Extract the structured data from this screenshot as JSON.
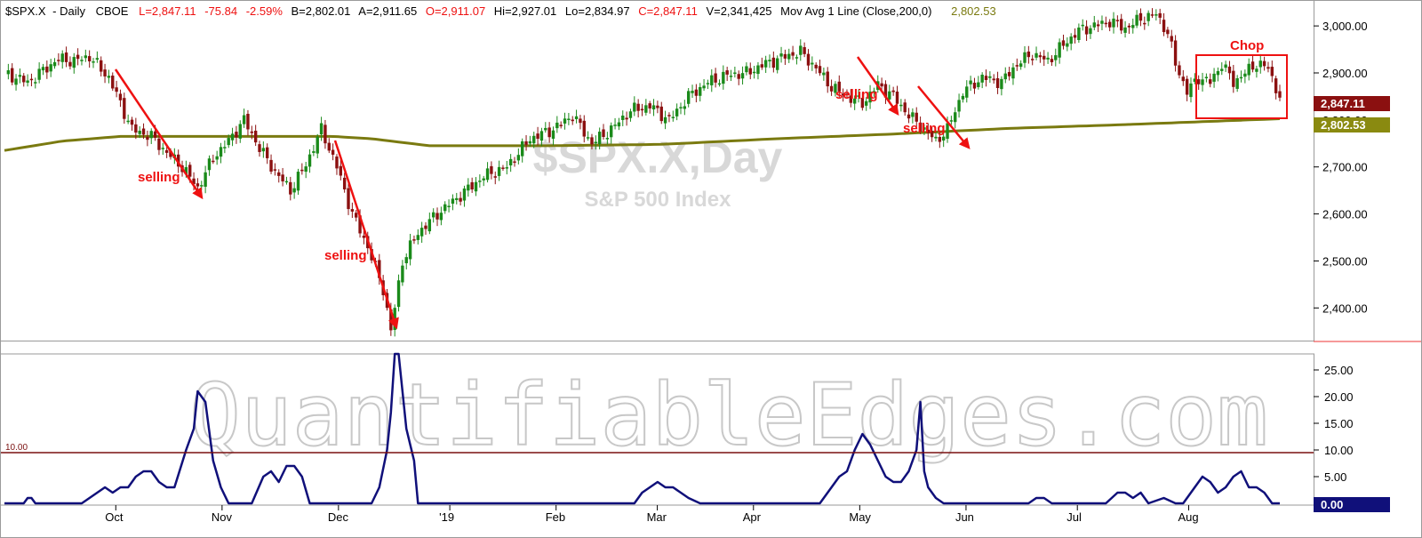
{
  "header": {
    "symbol": "$SPX.X",
    "period": "- Daily",
    "exchange": "CBOE",
    "last": "L=2,847.11",
    "change": "-75.84",
    "change_pct": "-2.59%",
    "bid": "B=2,802.01",
    "ask": "A=2,911.65",
    "open": "O=2,911.07",
    "high": "Hi=2,927.01",
    "low": "Lo=2,834.97",
    "close": "C=2,847.11",
    "volume": "V=2,341,425",
    "ma_label": "Mov Avg 1 Line (Close,200,0)",
    "ma_value": "2,802.53"
  },
  "watermark": {
    "title": "$SPX.X,Day",
    "subtitle": "S&P 500 Index",
    "brand": "QuantifiableEdges.com"
  },
  "colors": {
    "up": "#1a8a1a",
    "down": "#8b1010",
    "ma": "#7a7a10",
    "indicator": "#10107a",
    "threshold": "#7a1010",
    "annotation": "#ee1111",
    "last_badge": "#8b1010",
    "ma_badge": "#8a8a10",
    "ind_badge": "#10107a"
  },
  "price_badge": "2,847.11",
  "ma_badge": "2,802.53",
  "indicator_badge": "0.00",
  "threshold_label": "10.00",
  "annotations": {
    "selling_1": "selling",
    "selling_2": "selling",
    "selling_3": "selling",
    "selling_4": "selling",
    "chop": "Chop"
  },
  "chart_data": [
    {
      "type": "candlestick",
      "title": "$SPX.X,Day",
      "subtitle": "S&P 500 Index",
      "x_labels": [
        "Oct",
        "Nov",
        "Dec",
        "'19",
        "Feb",
        "Mar",
        "Apr",
        "May",
        "Jun",
        "Jul",
        "Aug"
      ],
      "y_ticks": [
        "3,000.00",
        "2,900.00",
        "2,800.00",
        "2,700.00",
        "2,600.00",
        "2,500.00",
        "2,400.00"
      ],
      "ylim": [
        2340,
        3040
      ],
      "price_anchors": [
        [
          0,
          2900
        ],
        [
          6,
          2880
        ],
        [
          10,
          2905
        ],
        [
          14,
          2930
        ],
        [
          18,
          2925
        ],
        [
          22,
          2935
        ],
        [
          27,
          2890
        ],
        [
          33,
          2780
        ],
        [
          38,
          2765
        ],
        [
          42,
          2730
        ],
        [
          46,
          2700
        ],
        [
          50,
          2655
        ],
        [
          54,
          2720
        ],
        [
          58,
          2755
        ],
        [
          62,
          2800
        ],
        [
          66,
          2740
        ],
        [
          70,
          2690
        ],
        [
          74,
          2650
        ],
        [
          78,
          2705
        ],
        [
          82,
          2780
        ],
        [
          86,
          2700
        ],
        [
          90,
          2600
        ],
        [
          94,
          2530
        ],
        [
          98,
          2440
        ],
        [
          100,
          2351
        ],
        [
          103,
          2500
        ],
        [
          107,
          2560
        ],
        [
          112,
          2600
        ],
        [
          118,
          2640
        ],
        [
          124,
          2680
        ],
        [
          130,
          2700
        ],
        [
          136,
          2760
        ],
        [
          142,
          2780
        ],
        [
          147,
          2810
        ],
        [
          152,
          2750
        ],
        [
          157,
          2780
        ],
        [
          162,
          2820
        ],
        [
          167,
          2830
        ],
        [
          172,
          2800
        ],
        [
          177,
          2850
        ],
        [
          182,
          2880
        ],
        [
          187,
          2895
        ],
        [
          192,
          2900
        ],
        [
          197,
          2920
        ],
        [
          202,
          2935
        ],
        [
          206,
          2945
        ],
        [
          210,
          2910
        ],
        [
          214,
          2870
        ],
        [
          218,
          2850
        ],
        [
          222,
          2835
        ],
        [
          226,
          2875
        ],
        [
          230,
          2850
        ],
        [
          234,
          2810
        ],
        [
          238,
          2780
        ],
        [
          241,
          2755
        ],
        [
          244,
          2780
        ],
        [
          248,
          2860
        ],
        [
          253,
          2890
        ],
        [
          258,
          2880
        ],
        [
          262,
          2920
        ],
        [
          266,
          2940
        ],
        [
          270,
          2925
        ],
        [
          274,
          2960
        ],
        [
          278,
          2990
        ],
        [
          282,
          3000
        ],
        [
          286,
          3010
        ],
        [
          290,
          2995
        ],
        [
          294,
          3015
        ],
        [
          298,
          3025
        ],
        [
          301,
          2985
        ],
        [
          303,
          2920
        ],
        [
          306,
          2860
        ],
        [
          309,
          2890
        ],
        [
          312,
          2880
        ],
        [
          315,
          2920
        ],
        [
          318,
          2880
        ],
        [
          321,
          2900
        ],
        [
          324,
          2920
        ],
        [
          327,
          2910
        ],
        [
          330,
          2847.11
        ]
      ],
      "moving_average": {
        "name": "Mov Avg 1 Line (Close,200,0)",
        "anchors": [
          [
            0,
            2735
          ],
          [
            15,
            2755
          ],
          [
            30,
            2765
          ],
          [
            55,
            2765
          ],
          [
            85,
            2765
          ],
          [
            95,
            2760
          ],
          [
            110,
            2745
          ],
          [
            140,
            2745
          ],
          [
            170,
            2748
          ],
          [
            200,
            2760
          ],
          [
            230,
            2770
          ],
          [
            260,
            2782
          ],
          [
            290,
            2790
          ],
          [
            330,
            2802.53
          ]
        ]
      },
      "annotations": [
        "selling",
        "selling",
        "selling",
        "selling",
        "Chop"
      ]
    },
    {
      "type": "line",
      "y_ticks": [
        "25.00",
        "20.00",
        "15.00",
        "10.00",
        "5.00",
        "0.00"
      ],
      "ylim": [
        0,
        28
      ],
      "threshold": 10,
      "points": [
        [
          0,
          0
        ],
        [
          5,
          0
        ],
        [
          6,
          1
        ],
        [
          7,
          1
        ],
        [
          8,
          0
        ],
        [
          20,
          0
        ],
        [
          24,
          2
        ],
        [
          26,
          3
        ],
        [
          28,
          2
        ],
        [
          30,
          3
        ],
        [
          32,
          3
        ],
        [
          34,
          5
        ],
        [
          36,
          6
        ],
        [
          38,
          6
        ],
        [
          40,
          4
        ],
        [
          42,
          3
        ],
        [
          44,
          3
        ],
        [
          47,
          10
        ],
        [
          49,
          14
        ],
        [
          50,
          21
        ],
        [
          52,
          19
        ],
        [
          54,
          8
        ],
        [
          56,
          3
        ],
        [
          58,
          0
        ],
        [
          64,
          0
        ],
        [
          67,
          5
        ],
        [
          69,
          6
        ],
        [
          71,
          4
        ],
        [
          73,
          7
        ],
        [
          75,
          7
        ],
        [
          77,
          5
        ],
        [
          79,
          0
        ],
        [
          95,
          0
        ],
        [
          97,
          3
        ],
        [
          99,
          10
        ],
        [
          100,
          17
        ],
        [
          101,
          28
        ],
        [
          102,
          28
        ],
        [
          104,
          14
        ],
        [
          106,
          8
        ],
        [
          107,
          0
        ],
        [
          163,
          0
        ],
        [
          165,
          2
        ],
        [
          167,
          3
        ],
        [
          169,
          4
        ],
        [
          171,
          3
        ],
        [
          173,
          3
        ],
        [
          175,
          2
        ],
        [
          177,
          1
        ],
        [
          180,
          0
        ],
        [
          211,
          0
        ],
        [
          214,
          3
        ],
        [
          216,
          5
        ],
        [
          218,
          6
        ],
        [
          220,
          10
        ],
        [
          222,
          13
        ],
        [
          224,
          11
        ],
        [
          226,
          8
        ],
        [
          228,
          5
        ],
        [
          230,
          4
        ],
        [
          232,
          4
        ],
        [
          234,
          6
        ],
        [
          236,
          10
        ],
        [
          237,
          19
        ],
        [
          238,
          6
        ],
        [
          239,
          3
        ],
        [
          241,
          1
        ],
        [
          243,
          0
        ],
        [
          265,
          0
        ],
        [
          267,
          1
        ],
        [
          269,
          1
        ],
        [
          271,
          0
        ],
        [
          285,
          0
        ],
        [
          288,
          2
        ],
        [
          290,
          2
        ],
        [
          292,
          1
        ],
        [
          294,
          2
        ],
        [
          296,
          0
        ],
        [
          300,
          1
        ],
        [
          303,
          0
        ],
        [
          305,
          0
        ],
        [
          308,
          3
        ],
        [
          310,
          5
        ],
        [
          312,
          4
        ],
        [
          314,
          2
        ],
        [
          316,
          3
        ],
        [
          318,
          5
        ],
        [
          320,
          6
        ],
        [
          322,
          3
        ],
        [
          324,
          3
        ],
        [
          326,
          2
        ],
        [
          328,
          0
        ],
        [
          330,
          0
        ]
      ]
    }
  ]
}
